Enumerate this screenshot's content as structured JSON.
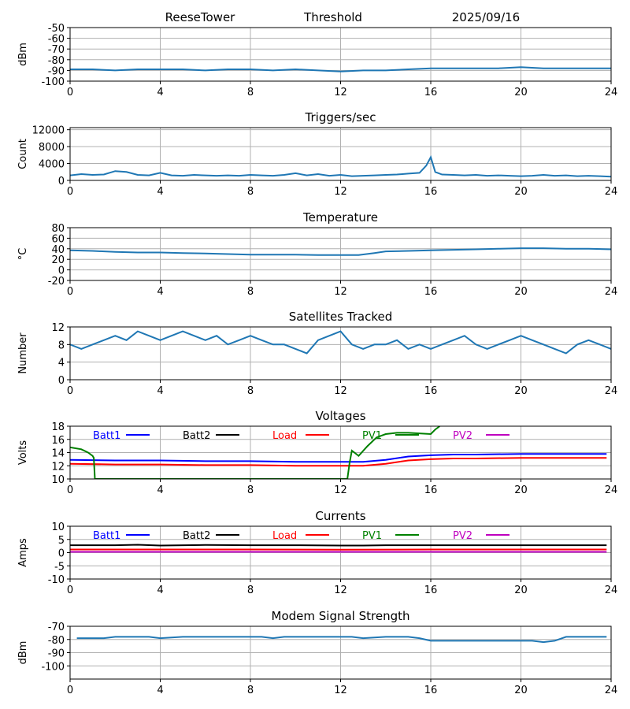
{
  "header": {
    "site": "ReeseTower",
    "center": "Threshold",
    "date": "2025/09/16"
  },
  "colors": {
    "series_default": "#1f77b4",
    "grid": "#b0b0b0",
    "Batt1": "#0000ff",
    "Batt2": "#000000",
    "Load": "#ff0000",
    "PV1": "#008000",
    "PV2": "#bf00bf"
  },
  "chart_data": [
    {
      "id": "threshold",
      "type": "line",
      "title": "",
      "xlabel": "",
      "ylabel": "dBm",
      "xlim": [
        0,
        24
      ],
      "ylim": [
        -100,
        -50
      ],
      "yticks": [
        -100,
        -90,
        -80,
        -70,
        -60,
        -50
      ],
      "grid": true,
      "series": [
        {
          "x": [
            0,
            1,
            2,
            3,
            4,
            5,
            6,
            7,
            8,
            9,
            10,
            11,
            12,
            13,
            14,
            15,
            16,
            17,
            18,
            19,
            20,
            21,
            22,
            23,
            24
          ],
          "values": [
            -89,
            -89,
            -90,
            -89,
            -89,
            -89,
            -90,
            -89,
            -89,
            -90,
            -89,
            -90,
            -91,
            -90,
            -90,
            -89,
            -88,
            -88,
            -88,
            -88,
            -87,
            -88,
            -88,
            -88,
            -88
          ]
        }
      ]
    },
    {
      "id": "triggers",
      "type": "line",
      "title": "Triggers/sec",
      "xlabel": "",
      "ylabel": "Count",
      "xlim": [
        0,
        24
      ],
      "ylim": [
        0,
        12500
      ],
      "yticks": [
        0,
        4000,
        8000,
        12000
      ],
      "grid": true,
      "series": [
        {
          "x": [
            0,
            0.5,
            1,
            1.5,
            2,
            2.5,
            3,
            3.5,
            4,
            4.5,
            5,
            5.5,
            6,
            6.5,
            7,
            7.5,
            8,
            8.5,
            9,
            9.5,
            10,
            10.5,
            11,
            11.5,
            12,
            12.5,
            13,
            13.5,
            14,
            14.5,
            15,
            15.5,
            15.8,
            16,
            16.2,
            16.5,
            17,
            17.5,
            18,
            18.5,
            19,
            19.5,
            20,
            20.5,
            21,
            21.5,
            22,
            22.5,
            23,
            23.5,
            24
          ],
          "values": [
            1200,
            1500,
            1300,
            1400,
            2200,
            2000,
            1300,
            1200,
            1800,
            1200,
            1100,
            1300,
            1200,
            1100,
            1200,
            1100,
            1300,
            1200,
            1100,
            1300,
            1700,
            1200,
            1500,
            1100,
            1300,
            1000,
            1100,
            1200,
            1300,
            1400,
            1600,
            1800,
            3500,
            5500,
            2000,
            1400,
            1300,
            1200,
            1300,
            1100,
            1200,
            1100,
            1000,
            1100,
            1300,
            1100,
            1200,
            1000,
            1100,
            1000,
            900
          ]
        }
      ]
    },
    {
      "id": "temperature",
      "type": "line",
      "title": "Temperature",
      "xlabel": "",
      "ylabel": "°C",
      "xlim": [
        0,
        24
      ],
      "ylim": [
        -20,
        80
      ],
      "yticks": [
        -20,
        0,
        20,
        40,
        60,
        80
      ],
      "grid": true,
      "series": [
        {
          "x": [
            0,
            1,
            2,
            3,
            4,
            5,
            6,
            7,
            8,
            9,
            10,
            11,
            12,
            12.8,
            13.5,
            14,
            15,
            16,
            17,
            18,
            19,
            20,
            21,
            22,
            23,
            24
          ],
          "values": [
            37,
            36,
            34,
            33,
            33,
            32,
            31,
            30,
            29,
            29,
            29,
            28,
            28,
            28,
            32,
            35,
            36,
            37,
            38,
            39,
            40,
            41,
            41,
            40,
            40,
            39
          ]
        }
      ]
    },
    {
      "id": "satellites",
      "type": "line",
      "title": "Satellites Tracked",
      "xlabel": "",
      "ylabel": "Number",
      "xlim": [
        0,
        24
      ],
      "ylim": [
        0,
        12
      ],
      "yticks": [
        0,
        4,
        8,
        12
      ],
      "grid": true,
      "series": [
        {
          "x": [
            0,
            0.5,
            1,
            1.5,
            2,
            2.5,
            3,
            3.5,
            4,
            4.5,
            5,
            5.5,
            6,
            6.5,
            7,
            7.5,
            8,
            8.5,
            9,
            9.5,
            10,
            10.5,
            11,
            11.5,
            12,
            12.5,
            13,
            13.5,
            14,
            14.5,
            15,
            15.5,
            16,
            16.5,
            17,
            17.5,
            18,
            18.5,
            19,
            19.5,
            20,
            20.5,
            21,
            21.5,
            22,
            22.5,
            23,
            23.5,
            24
          ],
          "values": [
            8,
            7,
            8,
            9,
            10,
            9,
            11,
            10,
            9,
            10,
            11,
            10,
            9,
            10,
            8,
            9,
            10,
            9,
            8,
            8,
            7,
            6,
            9,
            10,
            11,
            8,
            7,
            8,
            8,
            9,
            7,
            8,
            7,
            8,
            9,
            10,
            8,
            7,
            8,
            9,
            10,
            9,
            8,
            7,
            6,
            8,
            9,
            8,
            7
          ]
        }
      ]
    },
    {
      "id": "voltages",
      "type": "line",
      "title": "Voltages",
      "xlabel": "",
      "ylabel": "Volts",
      "xlim": [
        0,
        24
      ],
      "ylim": [
        10,
        18
      ],
      "yticks": [
        10,
        12,
        14,
        16,
        18
      ],
      "grid": true,
      "legend": "top, horizontal",
      "series": [
        {
          "name": "Batt1",
          "x": [
            0,
            2,
            4,
            6,
            8,
            10,
            12,
            13,
            14,
            15,
            16,
            17,
            18,
            20,
            22,
            23.8
          ],
          "values": [
            12.9,
            12.8,
            12.8,
            12.7,
            12.7,
            12.6,
            12.6,
            12.6,
            12.9,
            13.4,
            13.6,
            13.7,
            13.7,
            13.8,
            13.8,
            13.8
          ]
        },
        {
          "name": "Batt2",
          "x": [],
          "values": []
        },
        {
          "name": "Load",
          "x": [
            0,
            2,
            4,
            6,
            8,
            10,
            12,
            13,
            14,
            15,
            16,
            17,
            18,
            20,
            22,
            23.8
          ],
          "values": [
            12.3,
            12.2,
            12.2,
            12.1,
            12.1,
            12.0,
            12.0,
            12.0,
            12.3,
            12.8,
            13.0,
            13.1,
            13.1,
            13.2,
            13.2,
            13.2
          ]
        },
        {
          "name": "PV1",
          "x": [
            0,
            0.5,
            0.8,
            1.0,
            1.05,
            1.1,
            12.3,
            12.4,
            12.5,
            12.8,
            13.2,
            13.6,
            14,
            14.5,
            15,
            16,
            16.2,
            16.4
          ],
          "values": [
            14.8,
            14.5,
            14.0,
            13.5,
            13.2,
            10,
            10,
            12.5,
            14.3,
            13.5,
            15.0,
            16.3,
            16.8,
            17.0,
            17.0,
            16.8,
            17.5,
            18
          ]
        },
        {
          "name": "PV2",
          "x": [],
          "values": []
        }
      ]
    },
    {
      "id": "currents",
      "type": "line",
      "title": "Currents",
      "xlabel": "",
      "ylabel": "Amps",
      "xlim": [
        0,
        24
      ],
      "ylim": [
        -10,
        10
      ],
      "yticks": [
        -10,
        -5,
        0,
        5,
        10
      ],
      "grid": true,
      "legend": "top, horizontal",
      "series": [
        {
          "name": "Batt1",
          "x": [],
          "values": []
        },
        {
          "name": "Batt2",
          "x": [
            0,
            2,
            3,
            4,
            6,
            8,
            10,
            12,
            13,
            14,
            16,
            18,
            20,
            22,
            23.8
          ],
          "values": [
            2.8,
            2.8,
            3.0,
            2.7,
            2.9,
            2.8,
            2.8,
            2.7,
            2.7,
            2.8,
            2.8,
            2.8,
            2.8,
            2.8,
            2.8
          ]
        },
        {
          "name": "Load",
          "x": [
            0,
            4,
            8,
            12,
            16,
            20,
            23.8
          ],
          "values": [
            1.2,
            1.2,
            1.2,
            1.1,
            1.2,
            1.2,
            1.2
          ]
        },
        {
          "name": "PV1",
          "x": [],
          "values": []
        },
        {
          "name": "PV2",
          "x": [
            0,
            4,
            8,
            12,
            16,
            20,
            23.8
          ],
          "values": [
            0.3,
            0.3,
            0.3,
            0.3,
            0.3,
            0.3,
            0.3
          ]
        }
      ]
    },
    {
      "id": "modem",
      "type": "line",
      "title": "Modem Signal Strength",
      "xlabel": "",
      "ylabel": "dBm",
      "xlim": [
        0,
        24
      ],
      "ylim": [
        -110,
        -70
      ],
      "yticks": [
        -100,
        -90,
        -80,
        -70
      ],
      "grid": true,
      "series": [
        {
          "x": [
            0.3,
            1,
            1.5,
            2,
            3,
            3.5,
            4,
            5,
            6,
            7,
            8,
            8.5,
            9,
            9.5,
            10,
            11,
            12,
            12.5,
            13,
            14,
            15,
            15.5,
            16,
            17,
            18,
            19,
            20,
            20.5,
            21,
            21.5,
            22,
            23,
            23.8
          ],
          "values": [
            -79,
            -79,
            -79,
            -78,
            -78,
            -78,
            -79,
            -78,
            -78,
            -78,
            -78,
            -78,
            -79,
            -78,
            -78,
            -78,
            -78,
            -78,
            -79,
            -78,
            -78,
            -79,
            -81,
            -81,
            -81,
            -81,
            -81,
            -81,
            -82,
            -81,
            -78,
            -78,
            -78
          ]
        }
      ]
    }
  ],
  "xticks": [
    0,
    4,
    8,
    12,
    16,
    20,
    24
  ]
}
